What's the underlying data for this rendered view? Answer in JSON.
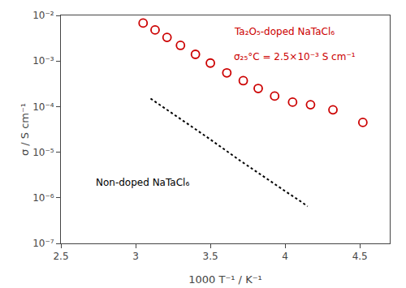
{
  "chart_data": {
    "type": "scatter",
    "xlabel": "1000 T⁻¹ / K⁻¹",
    "ylabel": "σ / S cm⁻¹",
    "log": "y",
    "grid": false,
    "xlim": [
      2.5,
      4.7
    ],
    "xticks": [
      2.5,
      3,
      3.5,
      4,
      4.5
    ],
    "ylim": [
      1e-07,
      0.01
    ],
    "yticks": [
      {
        "value": 1e-07,
        "label": "10⁻⁷"
      },
      {
        "value": 1e-06,
        "label": "10⁻⁶"
      },
      {
        "value": 1e-05,
        "label": "10⁻⁵"
      },
      {
        "value": 0.0001,
        "label": "10⁻⁴"
      },
      {
        "value": 0.001,
        "label": "10⁻³"
      },
      {
        "value": 0.01,
        "label": "10⁻²"
      }
    ],
    "series": [
      {
        "type": "scatter",
        "marker": "open circle",
        "color": "#cc0000",
        "x": [
          3.05,
          3.13,
          3.21,
          3.3,
          3.4,
          3.5,
          3.61,
          3.72,
          3.82,
          3.93,
          4.05,
          4.17,
          4.32,
          4.52
        ],
        "values": [
          0.0068,
          0.0048,
          0.0033,
          0.0022,
          0.0014,
          0.0009,
          0.00055,
          0.00037,
          0.00025,
          0.00017,
          0.000125,
          0.00011,
          8.5e-05,
          4.5e-05
        ]
      },
      {
        "type": "line",
        "line_style": "dotted",
        "color": "#000000",
        "x": [
          3.1,
          3.2,
          3.3,
          3.4,
          3.5,
          3.6,
          3.7,
          3.8,
          3.9,
          4.0,
          4.1,
          4.15
        ],
        "values": [
          0.00015,
          9e-05,
          5.5e-05,
          3.2e-05,
          1.9e-05,
          1.1e-05,
          6.5e-06,
          3.9e-06,
          2.3e-06,
          1.4e-06,
          8.5e-07,
          6.5e-07
        ]
      }
    ],
    "annotations": [
      {
        "text": "Ta₂O₅-doped NaTaCl₆",
        "color": "#cc0000"
      },
      {
        "text": "σ₂₅°C = 2.5×10⁻³ S cm⁻¹",
        "color": "#cc0000"
      },
      {
        "text": "Non-doped NaTaCl₆",
        "color": "#000000"
      }
    ]
  }
}
